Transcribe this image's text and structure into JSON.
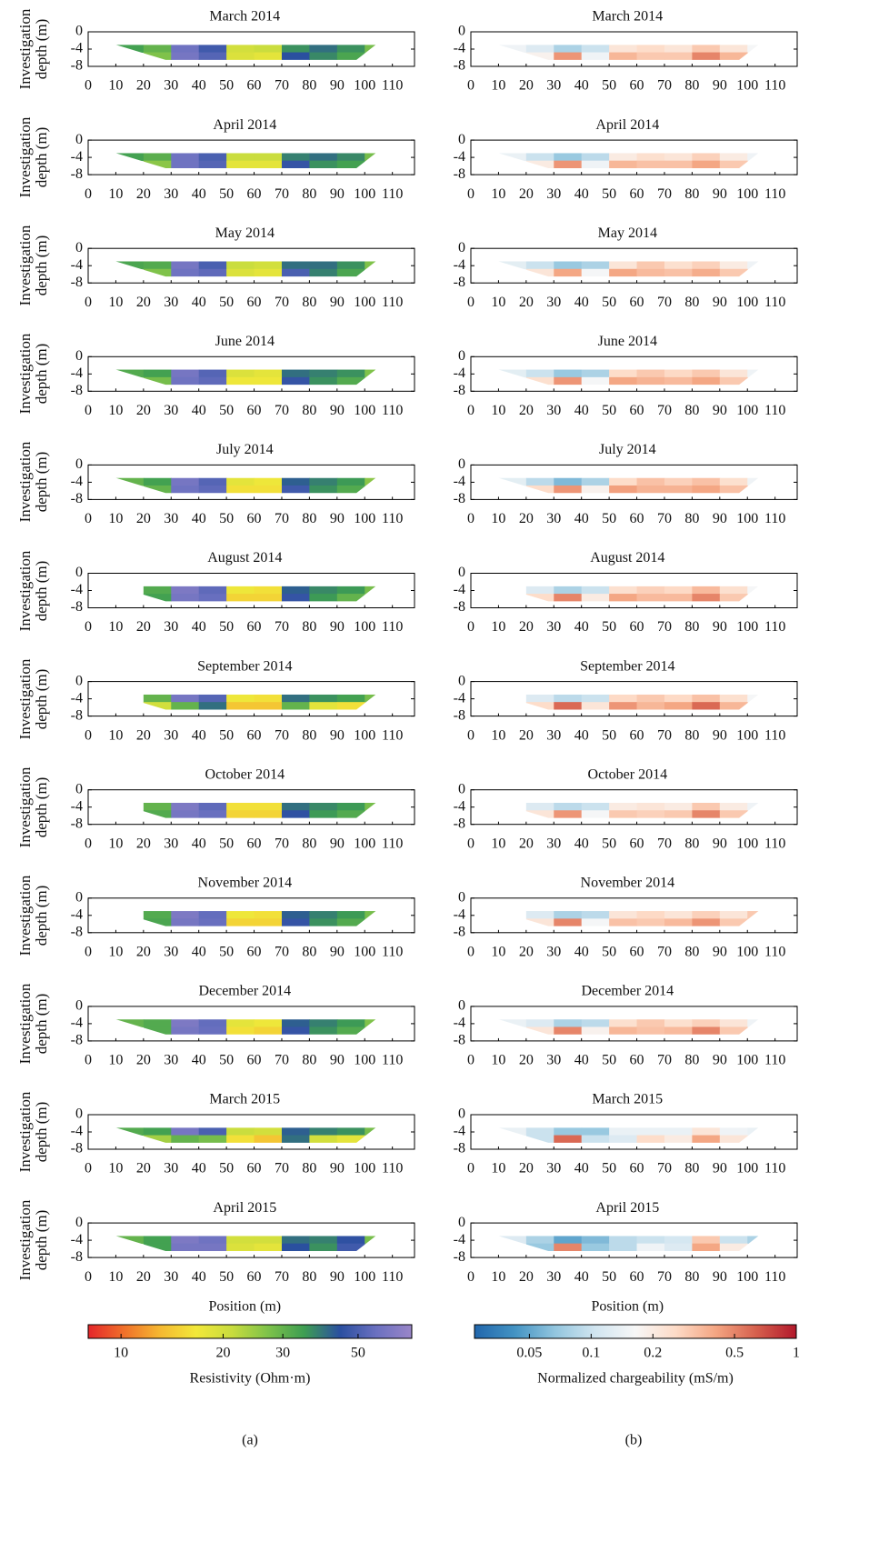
{
  "chart_data": {
    "type": "heatmap-grid",
    "xlim": [
      0,
      118
    ],
    "xticks": [
      0,
      10,
      20,
      30,
      40,
      50,
      60,
      70,
      80,
      90,
      100,
      110
    ],
    "ylim": [
      -8,
      0
    ],
    "yticks": [
      0,
      -4,
      -8
    ],
    "ylabel": "Investigation depth (m)",
    "xlabel": "Position (m)",
    "x": [
      15,
      25,
      35,
      45,
      55,
      65,
      75,
      85,
      95,
      105
    ],
    "y": [
      -3.875,
      -5.625
    ],
    "columns": [
      {
        "panel_label": "(a)",
        "colorbar": {
          "label": "Resistivity (Ohm·m)",
          "log": true,
          "clim": [
            8,
            72
          ],
          "ticks": [
            10,
            20,
            30,
            50
          ],
          "colors": [
            "#e4262a",
            "#f0702a",
            "#f5b831",
            "#f2e83a",
            "#c8dc3e",
            "#7ec24a",
            "#3e9e52",
            "#2a4fa0",
            "#6a70c0",
            "#9a86c8"
          ]
        },
        "panels": [
          {
            "title": "March 2014",
            "values": [
              [
                34,
                30,
                58,
                48,
                20,
                21,
                36,
                40,
                36,
                28
              ],
              [
                null,
                27,
                60,
                52,
                19,
                18,
                44,
                37,
                33,
                null
              ]
            ]
          },
          {
            "title": "April 2014",
            "values": [
              [
                34,
                31,
                58,
                50,
                21,
                21,
                38,
                40,
                37,
                28
              ],
              [
                null,
                26,
                58,
                52,
                18,
                18,
                46,
                36,
                34,
                null
              ]
            ]
          },
          {
            "title": "May 2014",
            "values": [
              [
                33,
                32,
                60,
                50,
                21,
                20,
                40,
                40,
                36,
                27
              ],
              [
                null,
                27,
                58,
                54,
                19,
                18,
                50,
                38,
                33,
                null
              ]
            ]
          },
          {
            "title": "June 2014",
            "values": [
              [
                32,
                34,
                60,
                52,
                19,
                18,
                40,
                38,
                36,
                27
              ],
              [
                null,
                28,
                58,
                54,
                17,
                17,
                46,
                36,
                32,
                null
              ]
            ]
          },
          {
            "title": "July 2014",
            "values": [
              [
                30,
                34,
                60,
                52,
                18,
                17,
                42,
                38,
                35,
                26
              ],
              [
                null,
                30,
                58,
                54,
                16,
                16,
                48,
                36,
                32,
                null
              ]
            ]
          },
          {
            "title": "August 2014",
            "values": [
              [
                null,
                32,
                62,
                54,
                17,
                16,
                42,
                37,
                35,
                28
              ],
              [
                null,
                34,
                60,
                56,
                15,
                15,
                46,
                35,
                30,
                null
              ]
            ]
          },
          {
            "title": "September 2014",
            "values": [
              [
                null,
                30,
                60,
                52,
                17,
                16,
                40,
                36,
                34,
                28
              ],
              [
                null,
                20,
                30,
                40,
                14,
                14,
                30,
                18,
                16,
                null
              ]
            ]
          },
          {
            "title": "October 2014",
            "values": [
              [
                null,
                30,
                62,
                54,
                16,
                16,
                40,
                37,
                35,
                28
              ],
              [
                null,
                32,
                60,
                56,
                15,
                15,
                45,
                35,
                32,
                null
              ]
            ]
          },
          {
            "title": "November 2014",
            "values": [
              [
                null,
                32,
                62,
                55,
                17,
                16,
                42,
                38,
                35,
                28
              ],
              [
                null,
                33,
                60,
                56,
                15,
                15,
                46,
                36,
                32,
                null
              ]
            ]
          },
          {
            "title": "December 2014",
            "values": [
              [
                30,
                32,
                62,
                55,
                18,
                17,
                42,
                38,
                35,
                27
              ],
              [
                null,
                32,
                60,
                56,
                16,
                15,
                46,
                36,
                32,
                null
              ]
            ]
          },
          {
            "title": "March 2015",
            "values": [
              [
                32,
                34,
                60,
                50,
                21,
                20,
                42,
                38,
                36,
                28
              ],
              [
                null,
                24,
                30,
                28,
                16,
                14,
                40,
                20,
                18,
                null
              ]
            ]
          },
          {
            "title": "April 2015",
            "values": [
              [
                30,
                34,
                62,
                58,
                20,
                20,
                40,
                38,
                45,
                28
              ],
              [
                null,
                34,
                60,
                60,
                19,
                18,
                44,
                36,
                48,
                null
              ]
            ]
          }
        ]
      },
      {
        "panel_label": "(b)",
        "colorbar": {
          "label": "Normalized chargeability (mS/m)",
          "log": true,
          "clim": [
            0.027,
            1
          ],
          "ticks": [
            0.05,
            0.1,
            0.2,
            0.5,
            1
          ],
          "colors": [
            "#2166ac",
            "#4393c3",
            "#92c5de",
            "#d1e5f0",
            "#f7f7f7",
            "#fddbc7",
            "#f4a582",
            "#d6604d",
            "#b2182b"
          ]
        },
        "panels": [
          {
            "title": "March 2014",
            "values": [
              [
                0.15,
                0.12,
                0.08,
                0.1,
                0.22,
                0.25,
                0.22,
                0.3,
                0.22,
                0.16
              ],
              [
                null,
                0.18,
                0.45,
                0.15,
                0.35,
                0.3,
                0.3,
                0.5,
                0.35,
                null
              ]
            ]
          },
          {
            "title": "April 2014",
            "values": [
              [
                0.14,
                0.1,
                0.07,
                0.09,
                0.2,
                0.24,
                0.22,
                0.28,
                0.2,
                0.15
              ],
              [
                null,
                0.2,
                0.45,
                0.15,
                0.35,
                0.32,
                0.32,
                0.4,
                0.3,
                null
              ]
            ]
          },
          {
            "title": "May 2014",
            "values": [
              [
                0.13,
                0.1,
                0.07,
                0.08,
                0.22,
                0.3,
                0.24,
                0.28,
                0.2,
                0.15
              ],
              [
                null,
                0.22,
                0.4,
                0.16,
                0.4,
                0.34,
                0.32,
                0.38,
                0.3,
                null
              ]
            ]
          },
          {
            "title": "June 2014",
            "values": [
              [
                0.13,
                0.1,
                0.07,
                0.08,
                0.25,
                0.3,
                0.26,
                0.3,
                0.22,
                0.15
              ],
              [
                null,
                0.24,
                0.45,
                0.16,
                0.4,
                0.36,
                0.34,
                0.4,
                0.3,
                null
              ]
            ]
          },
          {
            "title": "July 2014",
            "values": [
              [
                0.13,
                0.09,
                0.06,
                0.08,
                0.25,
                0.32,
                0.28,
                0.32,
                0.24,
                0.15
              ],
              [
                null,
                0.25,
                0.45,
                0.18,
                0.42,
                0.36,
                0.36,
                0.4,
                0.32,
                null
              ]
            ]
          },
          {
            "title": "August 2014",
            "values": [
              [
                null,
                0.12,
                0.08,
                0.1,
                0.24,
                0.28,
                0.26,
                0.34,
                0.24,
                0.16
              ],
              [
                null,
                0.25,
                0.5,
                0.2,
                0.4,
                0.34,
                0.34,
                0.5,
                0.3,
                null
              ]
            ]
          },
          {
            "title": "September 2014",
            "values": [
              [
                null,
                0.12,
                0.09,
                0.1,
                0.26,
                0.3,
                0.26,
                0.32,
                0.24,
                0.16
              ],
              [
                null,
                0.25,
                0.6,
                0.22,
                0.45,
                0.35,
                0.4,
                0.6,
                0.35,
                null
              ]
            ]
          },
          {
            "title": "October 2014",
            "values": [
              [
                null,
                0.12,
                0.09,
                0.1,
                0.2,
                0.22,
                0.2,
                0.3,
                0.2,
                0.15
              ],
              [
                null,
                0.22,
                0.45,
                0.16,
                0.3,
                0.28,
                0.3,
                0.5,
                0.3,
                null
              ]
            ]
          },
          {
            "title": "November 2014",
            "values": [
              [
                null,
                0.12,
                0.08,
                0.09,
                0.22,
                0.26,
                0.22,
                0.28,
                0.22,
                0.3
              ],
              [
                null,
                0.22,
                0.5,
                0.16,
                0.32,
                0.3,
                0.34,
                0.45,
                0.3,
                null
              ]
            ]
          },
          {
            "title": "December 2014",
            "values": [
              [
                0.14,
                0.12,
                0.08,
                0.09,
                0.24,
                0.3,
                0.24,
                0.28,
                0.22,
                0.15
              ],
              [
                null,
                0.22,
                0.5,
                0.18,
                0.35,
                0.32,
                0.34,
                0.5,
                0.3,
                null
              ]
            ]
          },
          {
            "title": "March 2015",
            "values": [
              [
                0.14,
                0.1,
                0.07,
                0.07,
                0.14,
                0.14,
                0.14,
                0.22,
                0.15,
                0.14
              ],
              [
                null,
                0.1,
                0.6,
                0.1,
                0.12,
                0.25,
                0.2,
                0.4,
                0.22,
                null
              ]
            ]
          },
          {
            "title": "April 2015",
            "values": [
              [
                0.12,
                0.08,
                0.05,
                0.06,
                0.09,
                0.1,
                0.11,
                0.3,
                0.1,
                0.08
              ],
              [
                null,
                0.07,
                0.5,
                0.07,
                0.09,
                0.15,
                0.12,
                0.4,
                0.2,
                null
              ]
            ]
          }
        ]
      }
    ]
  }
}
